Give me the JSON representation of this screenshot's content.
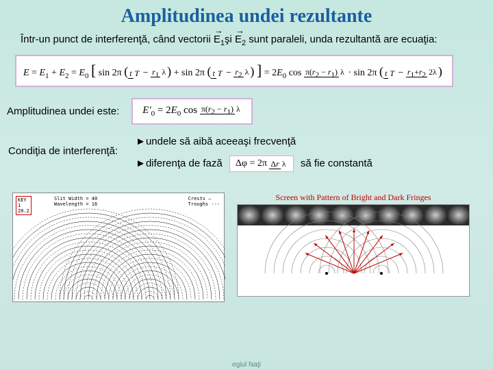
{
  "title": {
    "text": "Amplitudinea undei rezultante",
    "color": "#1a5f9e",
    "fontsize": 28,
    "fontweight": "bold",
    "fontfamily": "'Comic Sans MS', cursive"
  },
  "intro": {
    "pre": "Într-un punct de interferenţă, când vectorii ",
    "e1": "E",
    "sub1": "1",
    "mid": "şi ",
    "e2": "E",
    "sub2": "2",
    "post": " sunt paraleli, unda rezultantă are ecuaţia:"
  },
  "eq_main": "E = E₁ + E₂ = E₀ [ sin 2π ( t/T − r₁/λ ) + sin 2π ( t/T − r₂/λ ) ] = 2E₀ cos π(r₂ − r₁)/λ · sin 2π ( t/T − (r₁+r₂)/2λ )",
  "amp": {
    "label": "Amplitudinea undei este:",
    "eq": "E'₀ = 2E₀ cos π(r₂ − r₁)/λ"
  },
  "cond": {
    "label": "Condiţia de interferenţă:",
    "item1": "►undele să aibă aceeaşi frecvenţă",
    "item2_pre": "►diferenţa de fază",
    "item2_eq": "Δφ = 2π Δr/λ",
    "item2_post": "să fie constantă"
  },
  "fig_left": {
    "meta_lines": "KEY\n1\n20.2",
    "desc": "Slit Width = 40\nWavelength = 16",
    "legend": "Crests —\nTroughs ---",
    "arcs": {
      "counts": [
        22,
        22
      ],
      "origins": [
        [
          110,
          155
        ],
        [
          200,
          155
        ]
      ],
      "base_radius": 6,
      "stroke": "#000000"
    }
  },
  "fig_right": {
    "title": "Screen with Pattern of Bright and Dark Fringes",
    "fringes": {
      "count": 10,
      "bright": "#cccccc",
      "dark": "#2a2a2a",
      "height": 30
    },
    "diagram": {
      "background": "#ffffff",
      "height": 105,
      "sources": [
        [
          130,
          100
        ],
        [
          210,
          100
        ]
      ],
      "arrows": 9,
      "arrow_color": "#c00000",
      "arc_color": "#808080"
    }
  },
  "footer": "egiul Naţi"
}
